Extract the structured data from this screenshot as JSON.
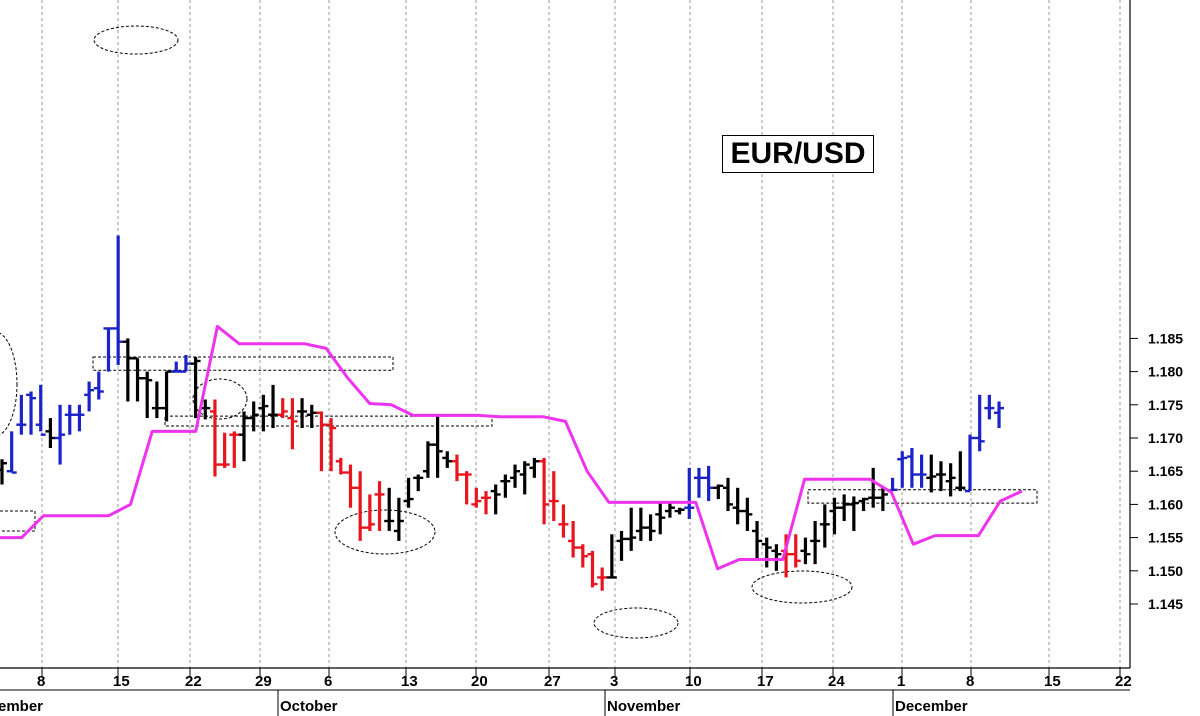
{
  "chart_data": {
    "type": "ohlc",
    "title": "EUR/USD",
    "ylim": [
      1.1435,
      1.2055
    ],
    "y_ticks": [
      "1.145",
      "1.150",
      "1.155",
      "1.160",
      "1.165",
      "1.170",
      "1.175",
      "1.180",
      "1.185"
    ],
    "x_ticks": [
      "8",
      "15",
      "22",
      "29",
      "6",
      "13",
      "20",
      "27",
      "3",
      "10",
      "17",
      "24",
      "1",
      "8",
      "15",
      "22"
    ],
    "months": [
      "ember",
      "October",
      "November",
      "December"
    ],
    "grid": true,
    "colors": {
      "up_trend": "#1a22c8",
      "down_trend": "#e8141e",
      "neutral": "#000000",
      "line": "#ee33ee"
    },
    "bars": [
      {
        "o": 1.1652,
        "h": 1.1668,
        "l": 1.163,
        "c": 1.1662,
        "color": "neutral"
      },
      {
        "o": 1.165,
        "h": 1.171,
        "l": 1.1648,
        "c": 1.1648,
        "color": "up_trend"
      },
      {
        "o": 1.172,
        "h": 1.1765,
        "l": 1.1705,
        "c": 1.172,
        "color": "up_trend"
      },
      {
        "o": 1.1765,
        "h": 1.177,
        "l": 1.1705,
        "c": 1.176,
        "color": "up_trend"
      },
      {
        "o": 1.172,
        "h": 1.178,
        "l": 1.171,
        "c": 1.1705,
        "color": "up_trend"
      },
      {
        "o": 1.171,
        "h": 1.173,
        "l": 1.1685,
        "c": 1.17,
        "color": "neutral"
      },
      {
        "o": 1.17,
        "h": 1.175,
        "l": 1.166,
        "c": 1.1705,
        "color": "up_trend"
      },
      {
        "o": 1.1735,
        "h": 1.175,
        "l": 1.1705,
        "c": 1.1735,
        "color": "up_trend"
      },
      {
        "o": 1.1735,
        "h": 1.175,
        "l": 1.171,
        "c": 1.1735,
        "color": "up_trend"
      },
      {
        "o": 1.1765,
        "h": 1.1785,
        "l": 1.174,
        "c": 1.1772,
        "color": "up_trend"
      },
      {
        "o": 1.1775,
        "h": 1.18,
        "l": 1.1758,
        "c": 1.177,
        "color": "up_trend"
      },
      {
        "o": 1.1865,
        "h": 1.1865,
        "l": 1.18,
        "c": 1.1865,
        "color": "up_trend"
      },
      {
        "o": 1.1865,
        "h": 1.2005,
        "l": 1.181,
        "c": 1.1845,
        "color": "up_trend"
      },
      {
        "o": 1.1845,
        "h": 1.185,
        "l": 1.1755,
        "c": 1.182,
        "color": "neutral"
      },
      {
        "o": 1.182,
        "h": 1.182,
        "l": 1.1755,
        "c": 1.179,
        "color": "neutral"
      },
      {
        "o": 1.179,
        "h": 1.18,
        "l": 1.173,
        "c": 1.1787,
        "color": "neutral"
      },
      {
        "o": 1.1745,
        "h": 1.1785,
        "l": 1.173,
        "c": 1.1745,
        "color": "neutral"
      },
      {
        "o": 1.1745,
        "h": 1.18,
        "l": 1.1725,
        "c": 1.18,
        "color": "neutral"
      },
      {
        "o": 1.18,
        "h": 1.1815,
        "l": 1.18,
        "c": 1.18,
        "color": "up_trend"
      },
      {
        "o": 1.18,
        "h": 1.1825,
        "l": 1.18,
        "c": 1.1812,
        "color": "up_trend"
      },
      {
        "o": 1.1812,
        "h": 1.1822,
        "l": 1.173,
        "c": 1.1816,
        "color": "neutral"
      },
      {
        "o": 1.1745,
        "h": 1.1758,
        "l": 1.1728,
        "c": 1.1745,
        "color": "neutral"
      },
      {
        "o": 1.174,
        "h": 1.1758,
        "l": 1.1642,
        "c": 1.166,
        "color": "down_trend"
      },
      {
        "o": 1.166,
        "h": 1.1708,
        "l": 1.1655,
        "c": 1.166,
        "color": "down_trend"
      },
      {
        "o": 1.1705,
        "h": 1.171,
        "l": 1.1655,
        "c": 1.1705,
        "color": "down_trend"
      },
      {
        "o": 1.1705,
        "h": 1.174,
        "l": 1.1665,
        "c": 1.173,
        "color": "neutral"
      },
      {
        "o": 1.173,
        "h": 1.1755,
        "l": 1.171,
        "c": 1.1735,
        "color": "neutral"
      },
      {
        "o": 1.1745,
        "h": 1.1765,
        "l": 1.171,
        "c": 1.1748,
        "color": "neutral"
      },
      {
        "o": 1.1735,
        "h": 1.178,
        "l": 1.1715,
        "c": 1.1735,
        "color": "neutral"
      },
      {
        "o": 1.1735,
        "h": 1.176,
        "l": 1.173,
        "c": 1.174,
        "color": "down_trend"
      },
      {
        "o": 1.173,
        "h": 1.176,
        "l": 1.1683,
        "c": 1.1725,
        "color": "down_trend"
      },
      {
        "o": 1.174,
        "h": 1.176,
        "l": 1.1715,
        "c": 1.174,
        "color": "neutral"
      },
      {
        "o": 1.1735,
        "h": 1.175,
        "l": 1.1715,
        "c": 1.1738,
        "color": "neutral"
      },
      {
        "o": 1.1738,
        "h": 1.174,
        "l": 1.165,
        "c": 1.172,
        "color": "down_trend"
      },
      {
        "o": 1.172,
        "h": 1.173,
        "l": 1.165,
        "c": 1.1715,
        "color": "down_trend"
      },
      {
        "o": 1.1665,
        "h": 1.167,
        "l": 1.1645,
        "c": 1.1648,
        "color": "down_trend"
      },
      {
        "o": 1.1648,
        "h": 1.166,
        "l": 1.1595,
        "c": 1.1625,
        "color": "down_trend"
      },
      {
        "o": 1.1625,
        "h": 1.165,
        "l": 1.1545,
        "c": 1.1565,
        "color": "down_trend"
      },
      {
        "o": 1.1565,
        "h": 1.1615,
        "l": 1.156,
        "c": 1.157,
        "color": "down_trend"
      },
      {
        "o": 1.1615,
        "h": 1.1635,
        "l": 1.156,
        "c": 1.1615,
        "color": "down_trend"
      },
      {
        "o": 1.1575,
        "h": 1.1625,
        "l": 1.156,
        "c": 1.1575,
        "color": "neutral"
      },
      {
        "o": 1.156,
        "h": 1.161,
        "l": 1.1545,
        "c": 1.1575,
        "color": "neutral"
      },
      {
        "o": 1.1605,
        "h": 1.164,
        "l": 1.1595,
        "c": 1.1608,
        "color": "neutral"
      },
      {
        "o": 1.164,
        "h": 1.1645,
        "l": 1.162,
        "c": 1.164,
        "color": "neutral"
      },
      {
        "o": 1.165,
        "h": 1.1695,
        "l": 1.164,
        "c": 1.169,
        "color": "neutral"
      },
      {
        "o": 1.169,
        "h": 1.1735,
        "l": 1.164,
        "c": 1.168,
        "color": "neutral"
      },
      {
        "o": 1.167,
        "h": 1.168,
        "l": 1.1655,
        "c": 1.1665,
        "color": "neutral"
      },
      {
        "o": 1.1665,
        "h": 1.1675,
        "l": 1.1635,
        "c": 1.1645,
        "color": "down_trend"
      },
      {
        "o": 1.1645,
        "h": 1.165,
        "l": 1.16,
        "c": 1.1645,
        "color": "down_trend"
      },
      {
        "o": 1.16,
        "h": 1.1625,
        "l": 1.1595,
        "c": 1.1605,
        "color": "down_trend"
      },
      {
        "o": 1.161,
        "h": 1.162,
        "l": 1.1585,
        "c": 1.161,
        "color": "down_trend"
      },
      {
        "o": 1.162,
        "h": 1.163,
        "l": 1.1585,
        "c": 1.1615,
        "color": "neutral"
      },
      {
        "o": 1.1635,
        "h": 1.1645,
        "l": 1.161,
        "c": 1.1635,
        "color": "neutral"
      },
      {
        "o": 1.164,
        "h": 1.166,
        "l": 1.1625,
        "c": 1.165,
        "color": "neutral"
      },
      {
        "o": 1.1645,
        "h": 1.1665,
        "l": 1.1615,
        "c": 1.166,
        "color": "neutral"
      },
      {
        "o": 1.1655,
        "h": 1.167,
        "l": 1.164,
        "c": 1.1665,
        "color": "neutral"
      },
      {
        "o": 1.1665,
        "h": 1.167,
        "l": 1.157,
        "c": 1.16,
        "color": "down_trend"
      },
      {
        "o": 1.1605,
        "h": 1.165,
        "l": 1.1575,
        "c": 1.1605,
        "color": "down_trend"
      },
      {
        "o": 1.157,
        "h": 1.16,
        "l": 1.155,
        "c": 1.157,
        "color": "down_trend"
      },
      {
        "o": 1.1545,
        "h": 1.1575,
        "l": 1.152,
        "c": 1.1535,
        "color": "down_trend"
      },
      {
        "o": 1.1535,
        "h": 1.154,
        "l": 1.1505,
        "c": 1.1522,
        "color": "down_trend"
      },
      {
        "o": 1.1525,
        "h": 1.153,
        "l": 1.1475,
        "c": 1.148,
        "color": "down_trend"
      },
      {
        "o": 1.149,
        "h": 1.1505,
        "l": 1.147,
        "c": 1.149,
        "color": "down_trend"
      },
      {
        "o": 1.149,
        "h": 1.1555,
        "l": 1.149,
        "c": 1.149,
        "color": "neutral"
      },
      {
        "o": 1.1545,
        "h": 1.156,
        "l": 1.1515,
        "c": 1.1548,
        "color": "neutral"
      },
      {
        "o": 1.1548,
        "h": 1.1595,
        "l": 1.153,
        "c": 1.155,
        "color": "neutral"
      },
      {
        "o": 1.156,
        "h": 1.1595,
        "l": 1.1545,
        "c": 1.1565,
        "color": "neutral"
      },
      {
        "o": 1.1565,
        "h": 1.1585,
        "l": 1.1545,
        "c": 1.156,
        "color": "neutral"
      },
      {
        "o": 1.1585,
        "h": 1.1605,
        "l": 1.1555,
        "c": 1.158,
        "color": "neutral"
      },
      {
        "o": 1.159,
        "h": 1.1605,
        "l": 1.158,
        "c": 1.1595,
        "color": "neutral"
      },
      {
        "o": 1.159,
        "h": 1.1595,
        "l": 1.1585,
        "c": 1.1592,
        "color": "neutral"
      },
      {
        "o": 1.1595,
        "h": 1.1655,
        "l": 1.1578,
        "c": 1.1595,
        "color": "up_trend"
      },
      {
        "o": 1.164,
        "h": 1.1655,
        "l": 1.161,
        "c": 1.164,
        "color": "up_trend"
      },
      {
        "o": 1.164,
        "h": 1.1658,
        "l": 1.1605,
        "c": 1.1625,
        "color": "up_trend"
      },
      {
        "o": 1.1625,
        "h": 1.163,
        "l": 1.1608,
        "c": 1.1628,
        "color": "neutral"
      },
      {
        "o": 1.1625,
        "h": 1.164,
        "l": 1.159,
        "c": 1.16,
        "color": "neutral"
      },
      {
        "o": 1.1595,
        "h": 1.1625,
        "l": 1.157,
        "c": 1.159,
        "color": "neutral"
      },
      {
        "o": 1.159,
        "h": 1.161,
        "l": 1.156,
        "c": 1.1585,
        "color": "neutral"
      },
      {
        "o": 1.156,
        "h": 1.1575,
        "l": 1.1515,
        "c": 1.1545,
        "color": "neutral"
      },
      {
        "o": 1.154,
        "h": 1.155,
        "l": 1.1505,
        "c": 1.1535,
        "color": "neutral"
      },
      {
        "o": 1.153,
        "h": 1.154,
        "l": 1.15,
        "c": 1.1525,
        "color": "neutral"
      },
      {
        "o": 1.153,
        "h": 1.1555,
        "l": 1.149,
        "c": 1.1525,
        "color": "down_trend"
      },
      {
        "o": 1.1525,
        "h": 1.1555,
        "l": 1.1505,
        "c": 1.1515,
        "color": "down_trend"
      },
      {
        "o": 1.153,
        "h": 1.155,
        "l": 1.151,
        "c": 1.1525,
        "color": "neutral"
      },
      {
        "o": 1.1545,
        "h": 1.1575,
        "l": 1.151,
        "c": 1.1545,
        "color": "neutral"
      },
      {
        "o": 1.157,
        "h": 1.16,
        "l": 1.1535,
        "c": 1.157,
        "color": "neutral"
      },
      {
        "o": 1.159,
        "h": 1.161,
        "l": 1.1555,
        "c": 1.1595,
        "color": "neutral"
      },
      {
        "o": 1.1595,
        "h": 1.1615,
        "l": 1.1575,
        "c": 1.16,
        "color": "neutral"
      },
      {
        "o": 1.16,
        "h": 1.1612,
        "l": 1.156,
        "c": 1.1602,
        "color": "neutral"
      },
      {
        "o": 1.1605,
        "h": 1.161,
        "l": 1.159,
        "c": 1.1608,
        "color": "neutral"
      },
      {
        "o": 1.161,
        "h": 1.1655,
        "l": 1.1595,
        "c": 1.161,
        "color": "neutral"
      },
      {
        "o": 1.161,
        "h": 1.1625,
        "l": 1.159,
        "c": 1.1615,
        "color": "neutral"
      },
      {
        "o": 1.162,
        "h": 1.164,
        "l": 1.162,
        "c": 1.1622,
        "color": "up_trend"
      },
      {
        "o": 1.1668,
        "h": 1.168,
        "l": 1.1625,
        "c": 1.167,
        "color": "up_trend"
      },
      {
        "o": 1.1672,
        "h": 1.1685,
        "l": 1.1625,
        "c": 1.1645,
        "color": "up_trend"
      },
      {
        "o": 1.1645,
        "h": 1.1675,
        "l": 1.1625,
        "c": 1.1645,
        "color": "up_trend"
      },
      {
        "o": 1.164,
        "h": 1.1675,
        "l": 1.1618,
        "c": 1.1642,
        "color": "neutral"
      },
      {
        "o": 1.1645,
        "h": 1.1665,
        "l": 1.162,
        "c": 1.1645,
        "color": "neutral"
      },
      {
        "o": 1.1635,
        "h": 1.1662,
        "l": 1.1612,
        "c": 1.164,
        "color": "neutral"
      },
      {
        "o": 1.1625,
        "h": 1.168,
        "l": 1.162,
        "c": 1.1625,
        "color": "neutral"
      },
      {
        "o": 1.162,
        "h": 1.1705,
        "l": 1.162,
        "c": 1.17,
        "color": "up_trend"
      },
      {
        "o": 1.17,
        "h": 1.1765,
        "l": 1.168,
        "c": 1.1695,
        "color": "up_trend"
      },
      {
        "o": 1.1745,
        "h": 1.1765,
        "l": 1.1728,
        "c": 1.1745,
        "color": "up_trend"
      },
      {
        "o": 1.1738,
        "h": 1.1755,
        "l": 1.1715,
        "c": 1.1745,
        "color": "up_trend"
      }
    ],
    "line": [
      1.155,
      1.155,
      1.1583,
      1.1583,
      1.1583,
      1.1583,
      1.16,
      1.171,
      1.171,
      1.171,
      1.1868,
      1.1842,
      1.1842,
      1.1842,
      1.1842,
      1.1835,
      1.179,
      1.1752,
      1.175,
      1.1734,
      1.1734,
      1.1734,
      1.1734,
      1.1732,
      1.1732,
      1.1732,
      1.1725,
      1.165,
      1.1603,
      1.1603,
      1.1603,
      1.1603,
      1.1603,
      1.1503,
      1.1517,
      1.1517,
      1.1517,
      1.1638,
      1.1638,
      1.1638,
      1.1638,
      1.1618,
      1.154,
      1.1553,
      1.1553,
      1.1553,
      1.1605,
      1.162
    ],
    "annotations": {
      "dashed_rectangles": [
        {
          "price_top": 1.159,
          "price_bottom": 1.156
        },
        {
          "price_top": 1.1822,
          "price_bottom": 1.1802
        },
        {
          "price_top": 1.1733,
          "price_bottom": 1.1718
        },
        {
          "price_top": 1.1622,
          "price_bottom": 1.1602
        }
      ],
      "dashed_ellipses": 7
    }
  }
}
